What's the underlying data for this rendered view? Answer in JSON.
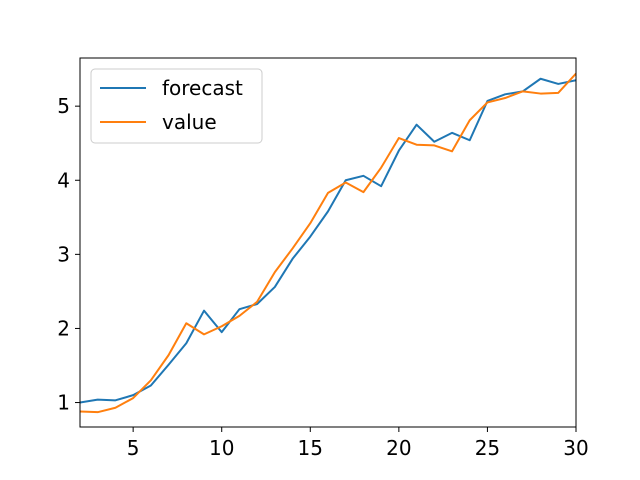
{
  "chart_data": {
    "type": "line",
    "xlim": [
      2,
      30
    ],
    "ylim": [
      0.67,
      5.65
    ],
    "xticks": [
      5,
      10,
      15,
      20,
      25,
      30
    ],
    "yticks": [
      1,
      2,
      3,
      4,
      5
    ],
    "xtick_labels": [
      "5",
      "10",
      "15",
      "20",
      "25",
      "30"
    ],
    "ytick_labels": [
      "1",
      "2",
      "3",
      "4",
      "5"
    ],
    "grid": false,
    "legend_position": "top-left",
    "series": [
      {
        "name": "forecast",
        "color": "#1f77b4",
        "x": [
          2,
          3,
          4,
          5,
          6,
          7,
          8,
          9,
          10,
          11,
          12,
          13,
          14,
          15,
          16,
          17,
          18,
          19,
          20,
          21,
          22,
          23,
          24,
          25,
          26,
          27,
          28,
          29,
          30
        ],
        "y": [
          1.0,
          1.04,
          1.03,
          1.1,
          1.23,
          1.51,
          1.8,
          2.24,
          1.95,
          2.26,
          2.33,
          2.56,
          2.94,
          3.24,
          3.58,
          4.0,
          4.06,
          3.92,
          4.4,
          4.75,
          4.52,
          4.64,
          4.54,
          5.07,
          5.16,
          5.2,
          5.37,
          5.3,
          5.35
        ]
      },
      {
        "name": "value",
        "color": "#ff7f0e",
        "x": [
          2,
          3,
          4,
          5,
          6,
          7,
          8,
          9,
          10,
          11,
          12,
          13,
          14,
          15,
          16,
          17,
          18,
          19,
          20,
          21,
          22,
          23,
          24,
          25,
          26,
          27,
          28,
          29,
          30
        ],
        "y": [
          0.88,
          0.87,
          0.93,
          1.06,
          1.3,
          1.64,
          2.07,
          1.92,
          2.03,
          2.17,
          2.36,
          2.76,
          3.08,
          3.42,
          3.83,
          3.97,
          3.84,
          4.17,
          4.57,
          4.48,
          4.47,
          4.39,
          4.81,
          5.05,
          5.11,
          5.2,
          5.17,
          5.18,
          5.44
        ]
      }
    ]
  }
}
